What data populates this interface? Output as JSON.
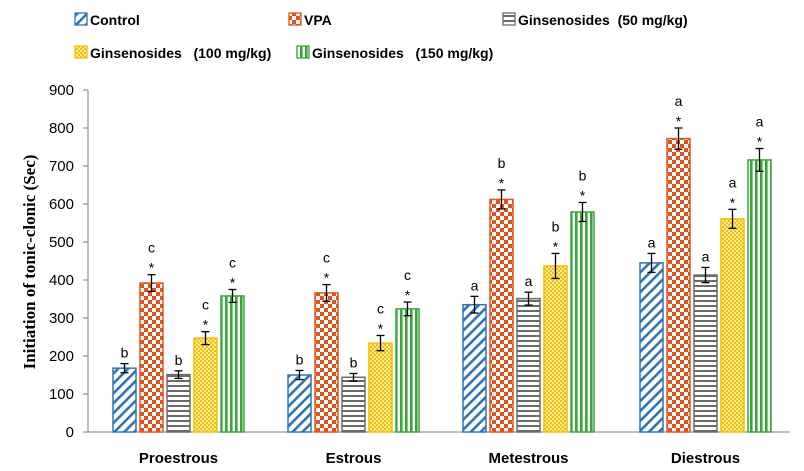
{
  "chart_data": {
    "type": "bar",
    "title": "",
    "xlabel": "",
    "ylabel": "Initiation of tonic-clonic (Sec)",
    "ylim": [
      0,
      900
    ],
    "yticks": [
      0,
      100,
      200,
      300,
      400,
      500,
      600,
      700,
      800,
      900
    ],
    "grid": false,
    "legend_position": "top",
    "categories": [
      "Proestrous",
      "Estrous",
      "Metestrous",
      "Diestrous"
    ],
    "series": [
      {
        "name": "Control",
        "pattern": "diagonal",
        "color": "#2e75b6",
        "values": [
          168,
          150,
          335,
          445
        ],
        "errors": [
          12,
          12,
          22,
          25
        ],
        "labels": [
          "b",
          "b",
          "a",
          "a"
        ],
        "stars": [
          false,
          false,
          false,
          false
        ]
      },
      {
        "name": "VPA",
        "pattern": "checker",
        "color": "#e2531c",
        "values": [
          392,
          366,
          612,
          772
        ],
        "errors": [
          22,
          22,
          25,
          28
        ],
        "labels": [
          "c",
          "c",
          "b",
          "a"
        ],
        "stars": [
          true,
          true,
          true,
          true
        ]
      },
      {
        "name": "Ginsenosides  (50 mg/kg)",
        "pattern": "horizontal",
        "color": "#6b6b6b",
        "values": [
          151,
          144,
          351,
          413
        ],
        "errors": [
          10,
          10,
          17,
          20
        ],
        "labels": [
          "b",
          "b",
          "a",
          "a"
        ],
        "stars": [
          false,
          false,
          false,
          false
        ]
      },
      {
        "name": "Ginsenosides   (100 mg/kg)",
        "pattern": "dots",
        "color": "#f2c200",
        "values": [
          247,
          234,
          437,
          561
        ],
        "errors": [
          17,
          20,
          33,
          25
        ],
        "labels": [
          "c",
          "c",
          "b",
          "a"
        ],
        "stars": [
          true,
          true,
          true,
          true
        ]
      },
      {
        "name": "Ginsenosides   (150 mg/kg)",
        "pattern": "vertical",
        "color": "#3aa53a",
        "values": [
          358,
          324,
          579,
          716
        ],
        "errors": [
          17,
          18,
          25,
          30
        ],
        "labels": [
          "c",
          "c",
          "b",
          "a"
        ],
        "stars": [
          true,
          true,
          true,
          true
        ]
      }
    ]
  }
}
